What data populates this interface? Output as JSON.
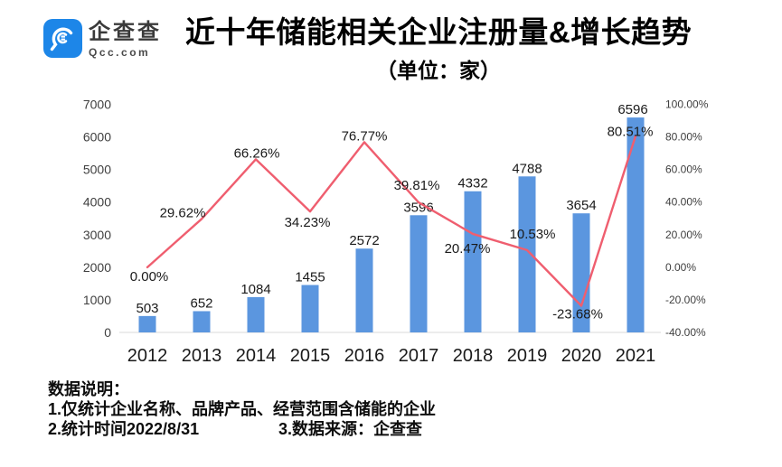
{
  "header": {
    "brand": {
      "name_cn": "企查查",
      "name_en": "Qcc.com",
      "color": "#1D86E8"
    },
    "title": "近十年储能相关企业注册量&增长趋势",
    "subtitle": "（单位：家）"
  },
  "chart_data": {
    "type": "bar+line",
    "title": "近十年储能相关企业注册量&增长趋势",
    "unit": "家",
    "categories": [
      "2012",
      "2013",
      "2014",
      "2015",
      "2016",
      "2017",
      "2018",
      "2019",
      "2020",
      "2021"
    ],
    "series": [
      {
        "name": "注册量(家)",
        "type": "bar",
        "color": "#5B96DF",
        "values": [
          503,
          652,
          1084,
          1455,
          2572,
          3596,
          4332,
          4788,
          3654,
          6596
        ]
      },
      {
        "name": "增长率",
        "type": "line",
        "color": "#EF5E6F",
        "values": [
          0.0,
          29.62,
          66.26,
          34.23,
          76.77,
          39.81,
          20.47,
          10.53,
          -23.68,
          80.51
        ],
        "labels": [
          "0.00%",
          "29.62%",
          "66.26%",
          "34.23%",
          "76.77%",
          "39.81%",
          "20.47%",
          "10.53%",
          "-23.68%",
          "80.51%"
        ]
      }
    ],
    "y_left": {
      "min": 0,
      "max": 7000,
      "tick_step": 1000,
      "tick_labels": [
        "0",
        "1000",
        "2000",
        "3000",
        "4000",
        "5000",
        "6000",
        "7000"
      ]
    },
    "y_right": {
      "min": -40,
      "max": 100,
      "tick_step": 20,
      "tick_labels": [
        "-40.00%",
        "-20.00%",
        "0.00%",
        "20.00%",
        "40.00%",
        "60.00%",
        "80.00%",
        "100.00%"
      ]
    },
    "grid": false,
    "legend": "none",
    "axis_line_color": "#d9d9d9",
    "tick_color": "#404040",
    "label_color": "#1a1a1a"
  },
  "notes": {
    "heading": "数据说明：",
    "line1": "1.仅统计企业名称、品牌产品、经营范围含储能的企业",
    "line2a": "2.统计时间2022/8/31",
    "line2b": "3.数据来源：企查查"
  }
}
